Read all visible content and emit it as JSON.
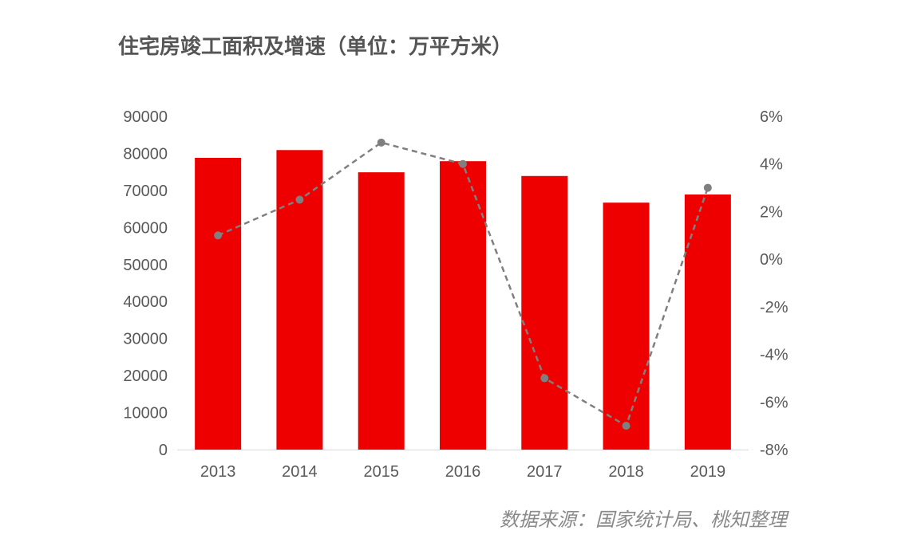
{
  "chart_data": {
    "type": "bar",
    "title": "住宅房竣工面积及增速（单位：万平方米）",
    "source": "数据来源：国家统计局、桃知整理",
    "categories": [
      "2013",
      "2014",
      "2015",
      "2016",
      "2017",
      "2018",
      "2019"
    ],
    "series": [
      {
        "type": "bar",
        "axis": "left",
        "values": [
          78800,
          80900,
          74900,
          77900,
          73900,
          66700,
          68900
        ]
      },
      {
        "type": "line",
        "axis": "right",
        "style": "dashed",
        "values": [
          1.0,
          2.5,
          4.9,
          4.0,
          -5.0,
          -7.0,
          3.0
        ]
      }
    ],
    "y_left": {
      "range": [
        0,
        90000
      ],
      "ticks": [
        "0",
        "10000",
        "20000",
        "30000",
        "40000",
        "50000",
        "60000",
        "70000",
        "80000",
        "90000"
      ]
    },
    "y_right": {
      "range": [
        -8,
        6
      ],
      "ticks": [
        "-8%",
        "-6%",
        "-4%",
        "-2%",
        "0%",
        "2%",
        "4%",
        "6%"
      ]
    },
    "grid": false,
    "colors": {
      "bar": "#ee0000",
      "line": "#7f7f7f"
    }
  }
}
